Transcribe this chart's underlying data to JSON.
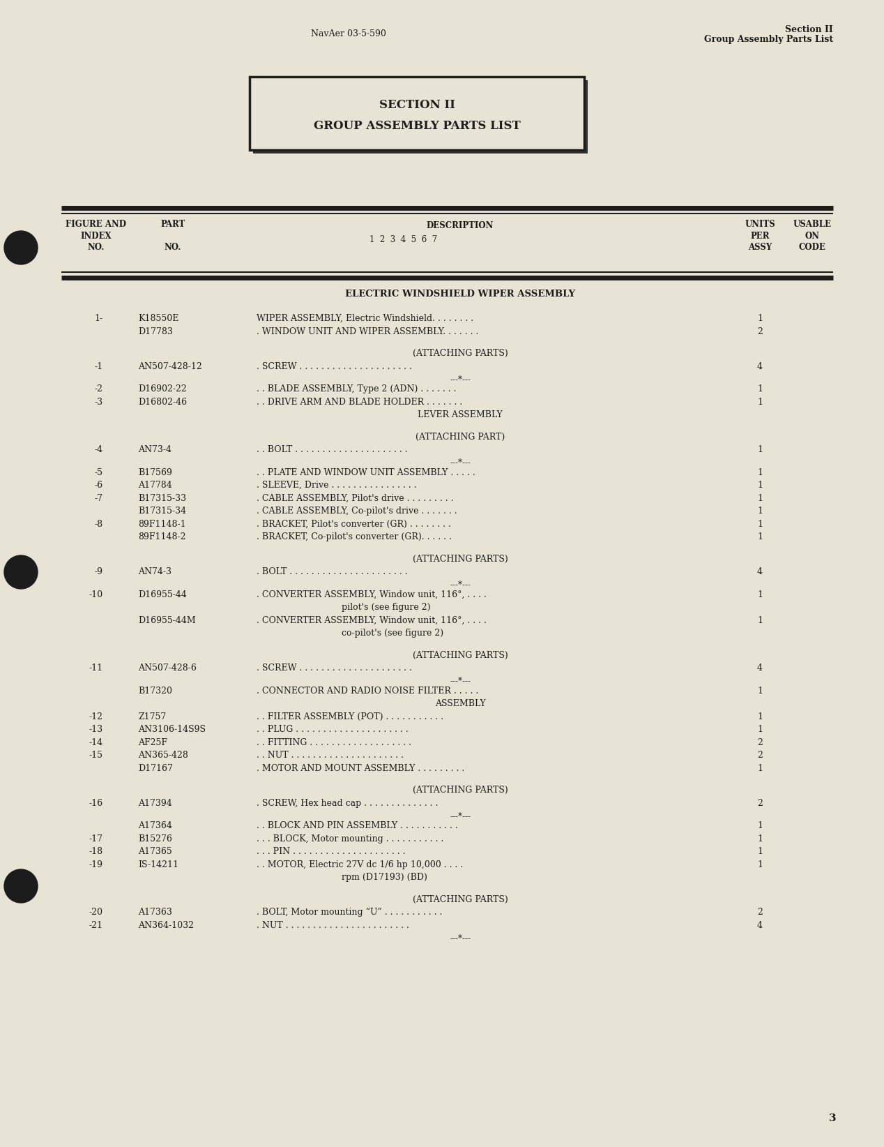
{
  "bg_color": "#e8e4d5",
  "header_left": "NavAer 03-5-590",
  "header_right_line1": "Section II",
  "header_right_line2": "Group Assembly Parts List",
  "section_box_line1": "SECTION II",
  "section_box_line2": "GROUP ASSEMBLY PARTS LIST",
  "assembly_title": "ELECTRIC WINDSHIELD WIPER ASSEMBLY",
  "rows": [
    {
      "idx": "1-",
      "part": "K18550E",
      "desc": "WIPER ASSEMBLY, Electric Windshield. . . . . . . .",
      "qty": "1",
      "indent": 0,
      "center": false,
      "sep": false
    },
    {
      "idx": "",
      "part": "D17783",
      "desc": ". WINDOW UNIT AND WIPER ASSEMBLY. . . . . . .",
      "qty": "2",
      "indent": 0,
      "center": false,
      "sep": false
    },
    {
      "idx": "",
      "part": "",
      "desc": "",
      "qty": "",
      "indent": 0,
      "center": false,
      "sep": false,
      "spacer": true
    },
    {
      "idx": "",
      "part": "",
      "desc": "(ATTACHING PARTS)",
      "qty": "",
      "indent": 0,
      "center": true,
      "sep": false
    },
    {
      "idx": "-1",
      "part": "AN507-428-12",
      "desc": ". SCREW . . . . . . . . . . . . . . . . . . . . .",
      "qty": "4",
      "indent": 0,
      "center": false,
      "sep": false
    },
    {
      "idx": "",
      "part": "",
      "desc": "---*---",
      "qty": "",
      "indent": 0,
      "center": true,
      "sep": true
    },
    {
      "idx": "-2",
      "part": "D16902-22",
      "desc": ". . BLADE ASSEMBLY, Type 2 (ADN) . . . . . . .",
      "qty": "1",
      "indent": 0,
      "center": false,
      "sep": false
    },
    {
      "idx": "-3",
      "part": "D16802-46",
      "desc": ". . DRIVE ARM AND BLADE HOLDER . . . . . . .",
      "qty": "1",
      "indent": 0,
      "center": false,
      "sep": false
    },
    {
      "idx": "",
      "part": "",
      "desc": "LEVER ASSEMBLY",
      "qty": "",
      "indent": 0,
      "center": true,
      "sep": false
    },
    {
      "idx": "",
      "part": "",
      "desc": "",
      "qty": "",
      "indent": 0,
      "center": false,
      "sep": false,
      "spacer": true
    },
    {
      "idx": "",
      "part": "",
      "desc": "(ATTACHING PART)",
      "qty": "",
      "indent": 0,
      "center": true,
      "sep": false
    },
    {
      "idx": "-4",
      "part": "AN73-4",
      "desc": ". . BOLT . . . . . . . . . . . . . . . . . . . . .",
      "qty": "1",
      "indent": 0,
      "center": false,
      "sep": false
    },
    {
      "idx": "",
      "part": "",
      "desc": "---*---",
      "qty": "",
      "indent": 0,
      "center": true,
      "sep": true
    },
    {
      "idx": "-5",
      "part": "B17569",
      "desc": ". . PLATE AND WINDOW UNIT ASSEMBLY . . . . .",
      "qty": "1",
      "indent": 0,
      "center": false,
      "sep": false
    },
    {
      "idx": "-6",
      "part": "A17784",
      "desc": ". SLEEVE, Drive . . . . . . . . . . . . . . . .",
      "qty": "1",
      "indent": 0,
      "center": false,
      "sep": false
    },
    {
      "idx": "-7",
      "part": "B17315-33",
      "desc": ". CABLE ASSEMBLY, Pilot's drive . . . . . . . . .",
      "qty": "1",
      "indent": 0,
      "center": false,
      "sep": false
    },
    {
      "idx": "",
      "part": "B17315-34",
      "desc": ". CABLE ASSEMBLY, Co-pilot's drive . . . . . . .",
      "qty": "1",
      "indent": 0,
      "center": false,
      "sep": false
    },
    {
      "idx": "-8",
      "part": "89F1148-1",
      "desc": ". BRACKET, Pilot's converter (GR) . . . . . . . .",
      "qty": "1",
      "indent": 0,
      "center": false,
      "sep": false
    },
    {
      "idx": "",
      "part": "89F1148-2",
      "desc": ". BRACKET, Co-pilot's converter (GR). . . . . .",
      "qty": "1",
      "indent": 0,
      "center": false,
      "sep": false
    },
    {
      "idx": "",
      "part": "",
      "desc": "",
      "qty": "",
      "indent": 0,
      "center": false,
      "sep": false,
      "spacer": true
    },
    {
      "idx": "",
      "part": "",
      "desc": "(ATTACHING PARTS)",
      "qty": "",
      "indent": 0,
      "center": true,
      "sep": false
    },
    {
      "idx": "-9",
      "part": "AN74-3",
      "desc": ". BOLT . . . . . . . . . . . . . . . . . . . . . .",
      "qty": "4",
      "indent": 0,
      "center": false,
      "sep": false
    },
    {
      "idx": "",
      "part": "",
      "desc": "---*---",
      "qty": "",
      "indent": 0,
      "center": true,
      "sep": true
    },
    {
      "idx": "-10",
      "part": "D16955-44",
      "desc": ". CONVERTER ASSEMBLY, Window unit, 116°, . . . .",
      "qty": "1",
      "indent": 0,
      "center": false,
      "sep": false
    },
    {
      "idx": "",
      "part": "",
      "desc": "pilot's (see figure 2)",
      "qty": "",
      "indent": 2,
      "center": false,
      "sep": false
    },
    {
      "idx": "",
      "part": "D16955-44M",
      "desc": ". CONVERTER ASSEMBLY, Window unit, 116°, . . . .",
      "qty": "1",
      "indent": 0,
      "center": false,
      "sep": false
    },
    {
      "idx": "",
      "part": "",
      "desc": "co-pilot's (see figure 2)",
      "qty": "",
      "indent": 2,
      "center": false,
      "sep": false
    },
    {
      "idx": "",
      "part": "",
      "desc": "",
      "qty": "",
      "indent": 0,
      "center": false,
      "sep": false,
      "spacer": true
    },
    {
      "idx": "",
      "part": "",
      "desc": "(ATTACHING PARTS)",
      "qty": "",
      "indent": 0,
      "center": true,
      "sep": false
    },
    {
      "idx": "-11",
      "part": "AN507-428-6",
      "desc": ". SCREW . . . . . . . . . . . . . . . . . . . . .",
      "qty": "4",
      "indent": 0,
      "center": false,
      "sep": false
    },
    {
      "idx": "",
      "part": "",
      "desc": "---*---",
      "qty": "",
      "indent": 0,
      "center": true,
      "sep": true
    },
    {
      "idx": "",
      "part": "B17320",
      "desc": ". CONNECTOR AND RADIO NOISE FILTER . . . . .",
      "qty": "1",
      "indent": 0,
      "center": false,
      "sep": false
    },
    {
      "idx": "",
      "part": "",
      "desc": "ASSEMBLY",
      "qty": "",
      "indent": 0,
      "center": true,
      "sep": false
    },
    {
      "idx": "-12",
      "part": "Z1757",
      "desc": ". . FILTER ASSEMBLY (POT) . . . . . . . . . . .",
      "qty": "1",
      "indent": 0,
      "center": false,
      "sep": false
    },
    {
      "idx": "-13",
      "part": "AN3106-14S9S",
      "desc": ". . PLUG . . . . . . . . . . . . . . . . . . . . .",
      "qty": "1",
      "indent": 0,
      "center": false,
      "sep": false
    },
    {
      "idx": "-14",
      "part": "AF25F",
      "desc": ". . FITTING . . . . . . . . . . . . . . . . . . .",
      "qty": "2",
      "indent": 0,
      "center": false,
      "sep": false
    },
    {
      "idx": "-15",
      "part": "AN365-428",
      "desc": ". . NUT . . . . . . . . . . . . . . . . . . . . .",
      "qty": "2",
      "indent": 0,
      "center": false,
      "sep": false
    },
    {
      "idx": "",
      "part": "D17167",
      "desc": ". MOTOR AND MOUNT ASSEMBLY . . . . . . . . .",
      "qty": "1",
      "indent": 0,
      "center": false,
      "sep": false
    },
    {
      "idx": "",
      "part": "",
      "desc": "",
      "qty": "",
      "indent": 0,
      "center": false,
      "sep": false,
      "spacer": true
    },
    {
      "idx": "",
      "part": "",
      "desc": "(ATTACHING PARTS)",
      "qty": "",
      "indent": 0,
      "center": true,
      "sep": false
    },
    {
      "idx": "-16",
      "part": "A17394",
      "desc": ". SCREW, Hex head cap . . . . . . . . . . . . . .",
      "qty": "2",
      "indent": 0,
      "center": false,
      "sep": false
    },
    {
      "idx": "",
      "part": "",
      "desc": "---*---",
      "qty": "",
      "indent": 0,
      "center": true,
      "sep": true
    },
    {
      "idx": "",
      "part": "A17364",
      "desc": ". . BLOCK AND PIN ASSEMBLY . . . . . . . . . . .",
      "qty": "1",
      "indent": 0,
      "center": false,
      "sep": false
    },
    {
      "idx": "-17",
      "part": "B15276",
      "desc": ". . . BLOCK, Motor mounting . . . . . . . . . . .",
      "qty": "1",
      "indent": 0,
      "center": false,
      "sep": false
    },
    {
      "idx": "-18",
      "part": "A17365",
      "desc": ". . . PIN . . . . . . . . . . . . . . . . . . . . .",
      "qty": "1",
      "indent": 0,
      "center": false,
      "sep": false
    },
    {
      "idx": "-19",
      "part": "IS-14211",
      "desc": ". . MOTOR, Electric 27V dc 1/6 hp 10,000 . . . .",
      "qty": "1",
      "indent": 0,
      "center": false,
      "sep": false
    },
    {
      "idx": "",
      "part": "",
      "desc": "rpm (D17193) (BD)",
      "qty": "",
      "indent": 2,
      "center": false,
      "sep": false
    },
    {
      "idx": "",
      "part": "",
      "desc": "",
      "qty": "",
      "indent": 0,
      "center": false,
      "sep": false,
      "spacer": true
    },
    {
      "idx": "",
      "part": "",
      "desc": "(ATTACHING PARTS)",
      "qty": "",
      "indent": 0,
      "center": true,
      "sep": false
    },
    {
      "idx": "-20",
      "part": "A17363",
      "desc": ". BOLT, Motor mounting “U” . . . . . . . . . . .",
      "qty": "2",
      "indent": 0,
      "center": false,
      "sep": false
    },
    {
      "idx": "-21",
      "part": "AN364-1032",
      "desc": ". NUT . . . . . . . . . . . . . . . . . . . . . . .",
      "qty": "4",
      "indent": 0,
      "center": false,
      "sep": false
    },
    {
      "idx": "",
      "part": "",
      "desc": "---*---",
      "qty": "",
      "indent": 0,
      "center": true,
      "sep": true
    }
  ],
  "page_number": "3"
}
